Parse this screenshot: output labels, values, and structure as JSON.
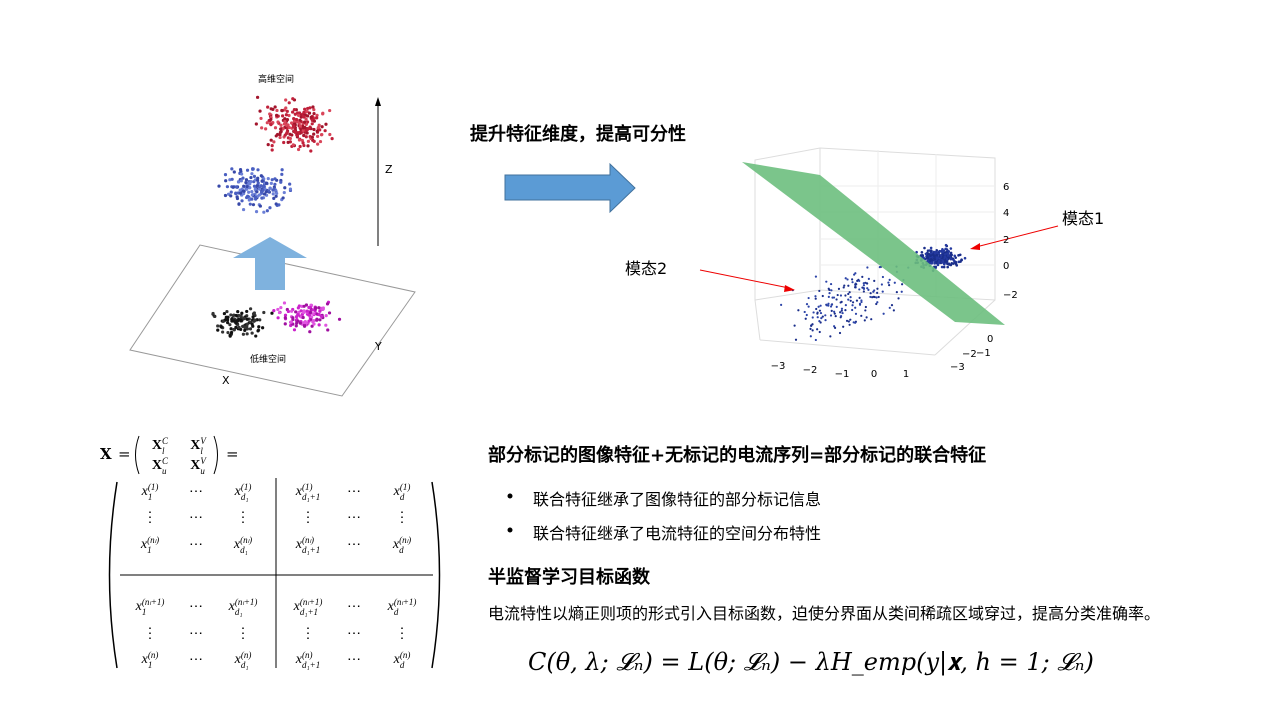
{
  "left_figure": {
    "top_label": "高维空间",
    "bottom_label": "低维空间",
    "axis_z": "Z",
    "axis_x": "X",
    "axis_y": "Y"
  },
  "heading": "提升特征维度，提高可分性",
  "right_figure": {
    "z_ticks": [
      "6",
      "4",
      "2",
      "0",
      "−2"
    ],
    "x_ticks": [
      "−3",
      "−2",
      "−1",
      "0",
      "1"
    ],
    "y_ticks": [
      "0",
      "−1",
      "−2",
      "−3"
    ],
    "label_mode1": "模态1",
    "label_mode2": "模态2"
  },
  "matrix": {
    "symbol": "X",
    "equals": "=",
    "block": [
      [
        {
          "base": "X",
          "sub": "l",
          "sup": "C"
        },
        {
          "base": "X",
          "sub": "l",
          "sup": "V"
        }
      ],
      [
        {
          "base": "X",
          "sub": "u",
          "sup": "C"
        },
        {
          "base": "X",
          "sub": "u",
          "sup": "V"
        }
      ]
    ],
    "rows": [
      [
        {
          "base": "x",
          "sub": "1",
          "sup": "(1)"
        },
        "⋯",
        {
          "base": "x",
          "sub": "d₁",
          "sup": "(1)"
        },
        {
          "base": "x",
          "sub": "d₁+1",
          "sup": "(1)"
        },
        "⋯",
        {
          "base": "x",
          "sub": "d",
          "sup": "(1)"
        }
      ],
      [
        "⋮",
        "⋯",
        "⋮",
        "⋮",
        "⋯",
        "⋮"
      ],
      [
        {
          "base": "x",
          "sub": "1",
          "sup": "(nₗ)"
        },
        "⋯",
        {
          "base": "x",
          "sub": "d₁",
          "sup": "(nₗ)"
        },
        {
          "base": "x",
          "sub": "d₁+1",
          "sup": "(nₗ)"
        },
        "⋯",
        {
          "base": "x",
          "sub": "d",
          "sup": "(nₗ)"
        }
      ],
      [
        {
          "base": "x",
          "sub": "1",
          "sup": "(nₗ+1)"
        },
        "⋯",
        {
          "base": "x",
          "sub": "d₁",
          "sup": "(nₗ+1)"
        },
        {
          "base": "x",
          "sub": "d₁+1",
          "sup": "(nₗ+1)"
        },
        "⋯",
        {
          "base": "x",
          "sub": "d",
          "sup": "(nₗ+1)"
        }
      ],
      [
        "⋮",
        "⋯",
        "⋮",
        "⋮",
        "⋯",
        "⋮"
      ],
      [
        {
          "base": "x",
          "sub": "1",
          "sup": "(n)"
        },
        "⋯",
        {
          "base": "x",
          "sub": "d₁",
          "sup": "(n)"
        },
        {
          "base": "x",
          "sub": "d₁+1",
          "sup": "(n)"
        },
        "⋯",
        {
          "base": "x",
          "sub": "d",
          "sup": "(n)"
        }
      ]
    ]
  },
  "section": {
    "title": "部分标记的图像特征+无标记的电流序列=部分标记的联合特征",
    "bullets": [
      "联合特征继承了图像特征的部分标记信息",
      "联合特征继承了电流特征的空间分布特性"
    ]
  },
  "objective": {
    "title": "半监督学习目标函数",
    "text": "电流特性以熵正则项的形式引入目标函数，迫使分界面从类间稀疏区域穿过，提高分类准确率。",
    "formula": "C(θ, λ; 𝓛ₙ) = L(θ; 𝓛ₙ) − λH_emp(y|𝐱, h = 1; 𝓛ₙ)"
  }
}
